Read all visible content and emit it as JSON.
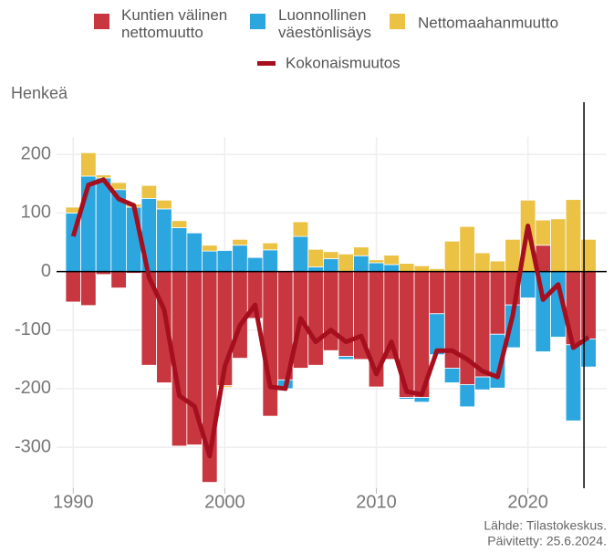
{
  "chart_data": {
    "type": "stacked_bar_line",
    "y_label": "Henkeä",
    "source": "Lähde: Tilastokeskus.",
    "updated": "Päivitetty: 25.6.2024.",
    "x": [
      1990,
      1991,
      1992,
      1993,
      1994,
      1995,
      1996,
      1997,
      1998,
      1999,
      2000,
      2001,
      2002,
      2003,
      2004,
      2005,
      2006,
      2007,
      2008,
      2009,
      2010,
      2011,
      2012,
      2013,
      2014,
      2015,
      2016,
      2017,
      2018,
      2019,
      2020,
      2021,
      2022,
      2023,
      2024
    ],
    "series": [
      {
        "name": "Kuntien välinen nettomuutto",
        "color": "#c8363f",
        "kind": "bar",
        "values": [
          -52,
          -58,
          -5,
          -28,
          -3,
          -160,
          -190,
          -298,
          -296,
          -360,
          -195,
          -148,
          -80,
          -247,
          -185,
          -165,
          -160,
          -135,
          -145,
          -150,
          -197,
          -150,
          -215,
          -215,
          -72,
          -165,
          -193,
          -180,
          -107,
          -57,
          0,
          45,
          0,
          -125,
          -115
        ]
      },
      {
        "name": "Luonnollinen väestönlisäys",
        "color": "#2ba6df",
        "kind": "bar",
        "values": [
          100,
          163,
          160,
          140,
          110,
          125,
          107,
          75,
          66,
          35,
          36,
          45,
          24,
          37,
          -15,
          60,
          8,
          22,
          -5,
          27,
          15,
          12,
          -3,
          -8,
          -70,
          -25,
          -38,
          -22,
          -92,
          -73,
          -45,
          -137,
          -112,
          -130,
          -48
        ]
      },
      {
        "name": "Nettomaahanmuutto",
        "color": "#ebc244",
        "kind": "bar",
        "values": [
          10,
          40,
          5,
          12,
          5,
          22,
          15,
          12,
          0,
          10,
          -3,
          10,
          0,
          12,
          0,
          25,
          30,
          12,
          30,
          15,
          5,
          16,
          14,
          10,
          5,
          52,
          77,
          32,
          18,
          55,
          122,
          43,
          90,
          123,
          55
        ]
      },
      {
        "name": "Kokonaismuutos",
        "color": "#a50f1e",
        "kind": "line",
        "values": [
          60,
          148,
          157,
          124,
          113,
          -10,
          -65,
          -212,
          -230,
          -315,
          -162,
          -92,
          -57,
          -197,
          -200,
          -80,
          -120,
          -100,
          -120,
          -110,
          -175,
          -120,
          -205,
          -210,
          -135,
          -135,
          -150,
          -170,
          -180,
          -75,
          78,
          -48,
          -22,
          -130,
          -112
        ]
      }
    ],
    "xlim": [
      1988.9,
      2025.2
    ],
    "xticks": [
      1990,
      2000,
      2010,
      2020
    ],
    "ylim": [
      -370,
      230
    ],
    "yticks": [
      -300,
      -200,
      -100,
      0,
      100,
      200
    ],
    "vline_x": 2023.7,
    "grid": true
  }
}
